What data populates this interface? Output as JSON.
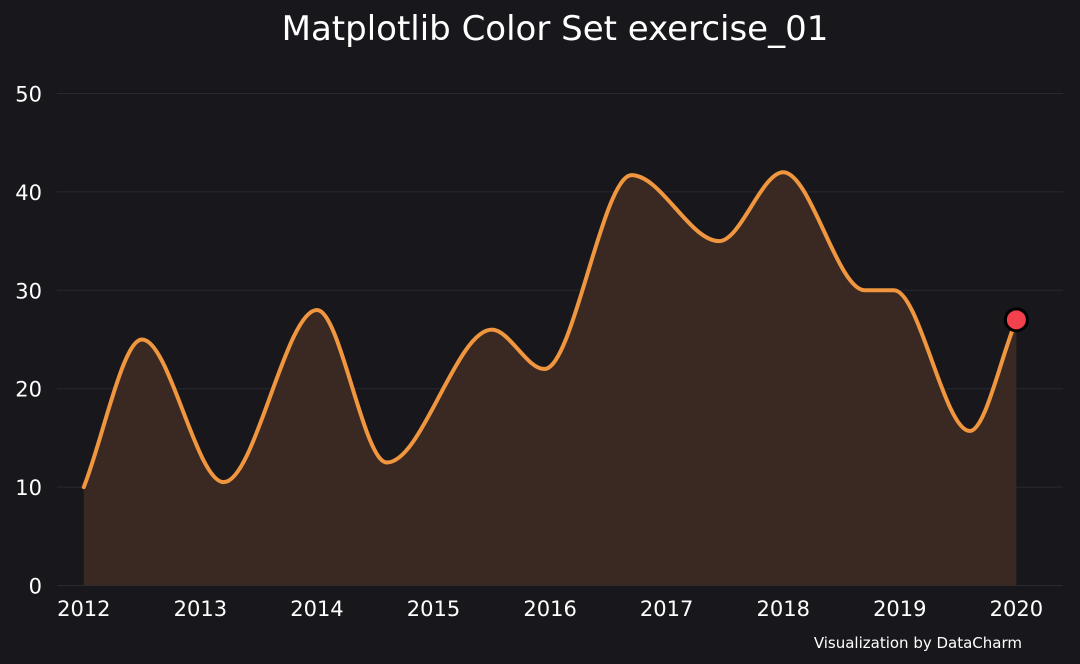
{
  "chart_data": {
    "type": "area",
    "title": "Matplotlib Color Set exercise_01",
    "xlabel": "",
    "ylabel": "",
    "credit": "Visualization by DataCharm",
    "x_ticks": [
      2012,
      2013,
      2014,
      2015,
      2016,
      2017,
      2018,
      2019,
      2020
    ],
    "y_ticks": [
      0,
      10,
      20,
      30,
      40,
      50
    ],
    "xlim": [
      2011.77,
      2020.4
    ],
    "ylim": [
      0,
      50
    ],
    "grid": "horizontal",
    "colors": {
      "background": "#18171c",
      "line": "#f0963e",
      "fill": "#3a2923",
      "marker": "#f2404c",
      "marker_edge": "#000000",
      "grid": "#2a2930",
      "text": "#ffffff"
    },
    "series": [
      {
        "x": [
          2012,
          2012.5,
          2013.2,
          2014,
          2014.6,
          2015.5,
          2015.95,
          2016.7,
          2017.45,
          2018,
          2018.7,
          2018.95,
          2019.6,
          2020
        ],
        "values": [
          10,
          25,
          10.5,
          28,
          12.5,
          26,
          22,
          41.7,
          35,
          42,
          30,
          30,
          15.7,
          27
        ]
      }
    ],
    "highlight_point": {
      "x": 2020,
      "y": 27
    }
  }
}
